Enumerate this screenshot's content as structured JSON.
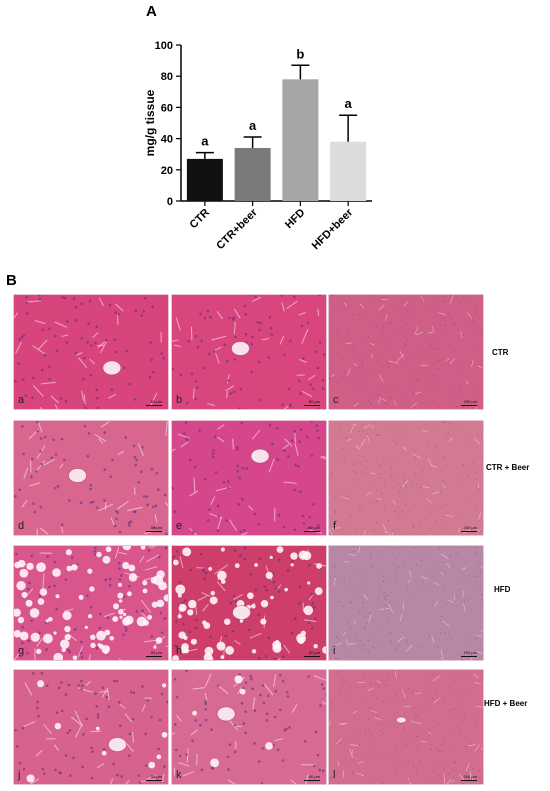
{
  "panel_a": {
    "label": "A"
  },
  "panel_b": {
    "label": "B"
  },
  "chart_data": {
    "type": "bar",
    "ylabel": "mg/g tissue",
    "ylim": [
      0,
      100
    ],
    "yticks": [
      0,
      20,
      40,
      60,
      80,
      100
    ],
    "categories": [
      "CTR",
      "CTR+beer",
      "HFD",
      "HFD+beer"
    ],
    "values": [
      27,
      34,
      78,
      38
    ],
    "errors": [
      4,
      7,
      9,
      17
    ],
    "significance": [
      "a",
      "a",
      "b",
      "a"
    ],
    "colors": [
      "#111111",
      "#7a7a7a",
      "#a6a6a8",
      "#dcdcdc"
    ],
    "grid": false,
    "legend": "none"
  },
  "micrographs": [
    {
      "id": "a",
      "scale": "50 µm",
      "tone": "#d7457c",
      "fat": 0,
      "vessel": true
    },
    {
      "id": "b",
      "scale": "50 µm",
      "tone": "#d9467e",
      "fat": 0,
      "vessel": true
    },
    {
      "id": "c",
      "scale": "200 µm",
      "tone": "#cf5f86",
      "fat": 0,
      "vessel": false
    },
    {
      "id": "d",
      "scale": "50 µm",
      "tone": "#d9668f",
      "fat": 0,
      "vessel": true
    },
    {
      "id": "e",
      "scale": "50 µm",
      "tone": "#d5478a",
      "fat": 0,
      "vessel": true
    },
    {
      "id": "f",
      "scale": "200 µm",
      "tone": "#d27a92",
      "fat": 0,
      "vessel": false
    },
    {
      "id": "g",
      "scale": "50 µm",
      "tone": "#d9568d",
      "fat": 0.9,
      "vessel": false
    },
    {
      "id": "h",
      "scale": "50 µm",
      "tone": "#cd3f6a",
      "fat": 0.7,
      "vessel": true
    },
    {
      "id": "i",
      "scale": "200 µm",
      "tone": "#b987a6",
      "fat": 0,
      "vessel": false
    },
    {
      "id": "j",
      "scale": "50 µm",
      "tone": "#d8628e",
      "fat": 0.1,
      "vessel": true
    },
    {
      "id": "k",
      "scale": "50 µm",
      "tone": "#d76a92",
      "fat": 0.05,
      "vessel": true
    },
    {
      "id": "l",
      "scale": "200 µm",
      "tone": "#d16e8e",
      "fat": 0,
      "vessel": true
    }
  ],
  "row_labels": [
    "CTR",
    "CTR + Beer",
    "HFD",
    "HFD + Beer"
  ]
}
